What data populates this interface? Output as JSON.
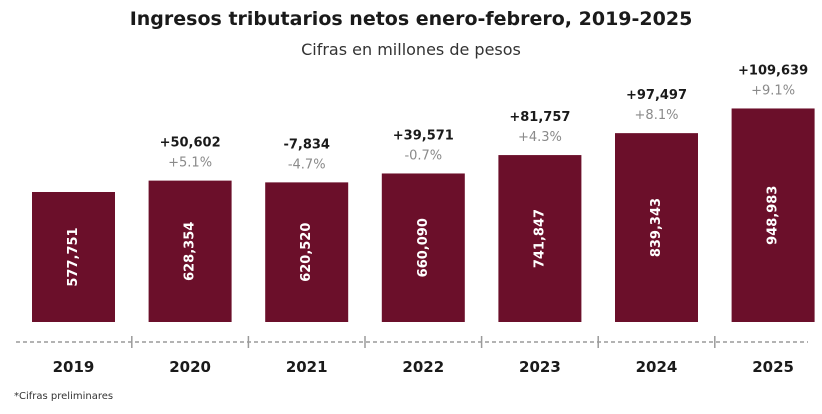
{
  "chart_data": {
    "type": "bar",
    "title": "Ingresos tributarios netos enero-febrero, 2019-2025",
    "subtitle": "Cifras en millones de pesos",
    "categories": [
      "2019",
      "2020",
      "2021",
      "2022",
      "2023",
      "2024",
      "2025"
    ],
    "values": [
      577751,
      628354,
      620520,
      660090,
      741847,
      839343,
      948983
    ],
    "value_labels": [
      "577,751",
      "628,354",
      "620,520",
      "660,090",
      "741,847",
      "839,343",
      "948,983"
    ],
    "change_abs": [
      "",
      "+50,602",
      "-7,834",
      "+39,571",
      "+81,757",
      "+97,497",
      "+109,639"
    ],
    "change_pct": [
      "",
      "+5.1%",
      "-4.7%",
      "-0.7%",
      "+4.3%",
      "+8.1%",
      "+9.1%"
    ],
    "bar_color": "#6b0f2a",
    "grid": false,
    "legend": "none"
  },
  "footnote": "*Cifras preliminares"
}
